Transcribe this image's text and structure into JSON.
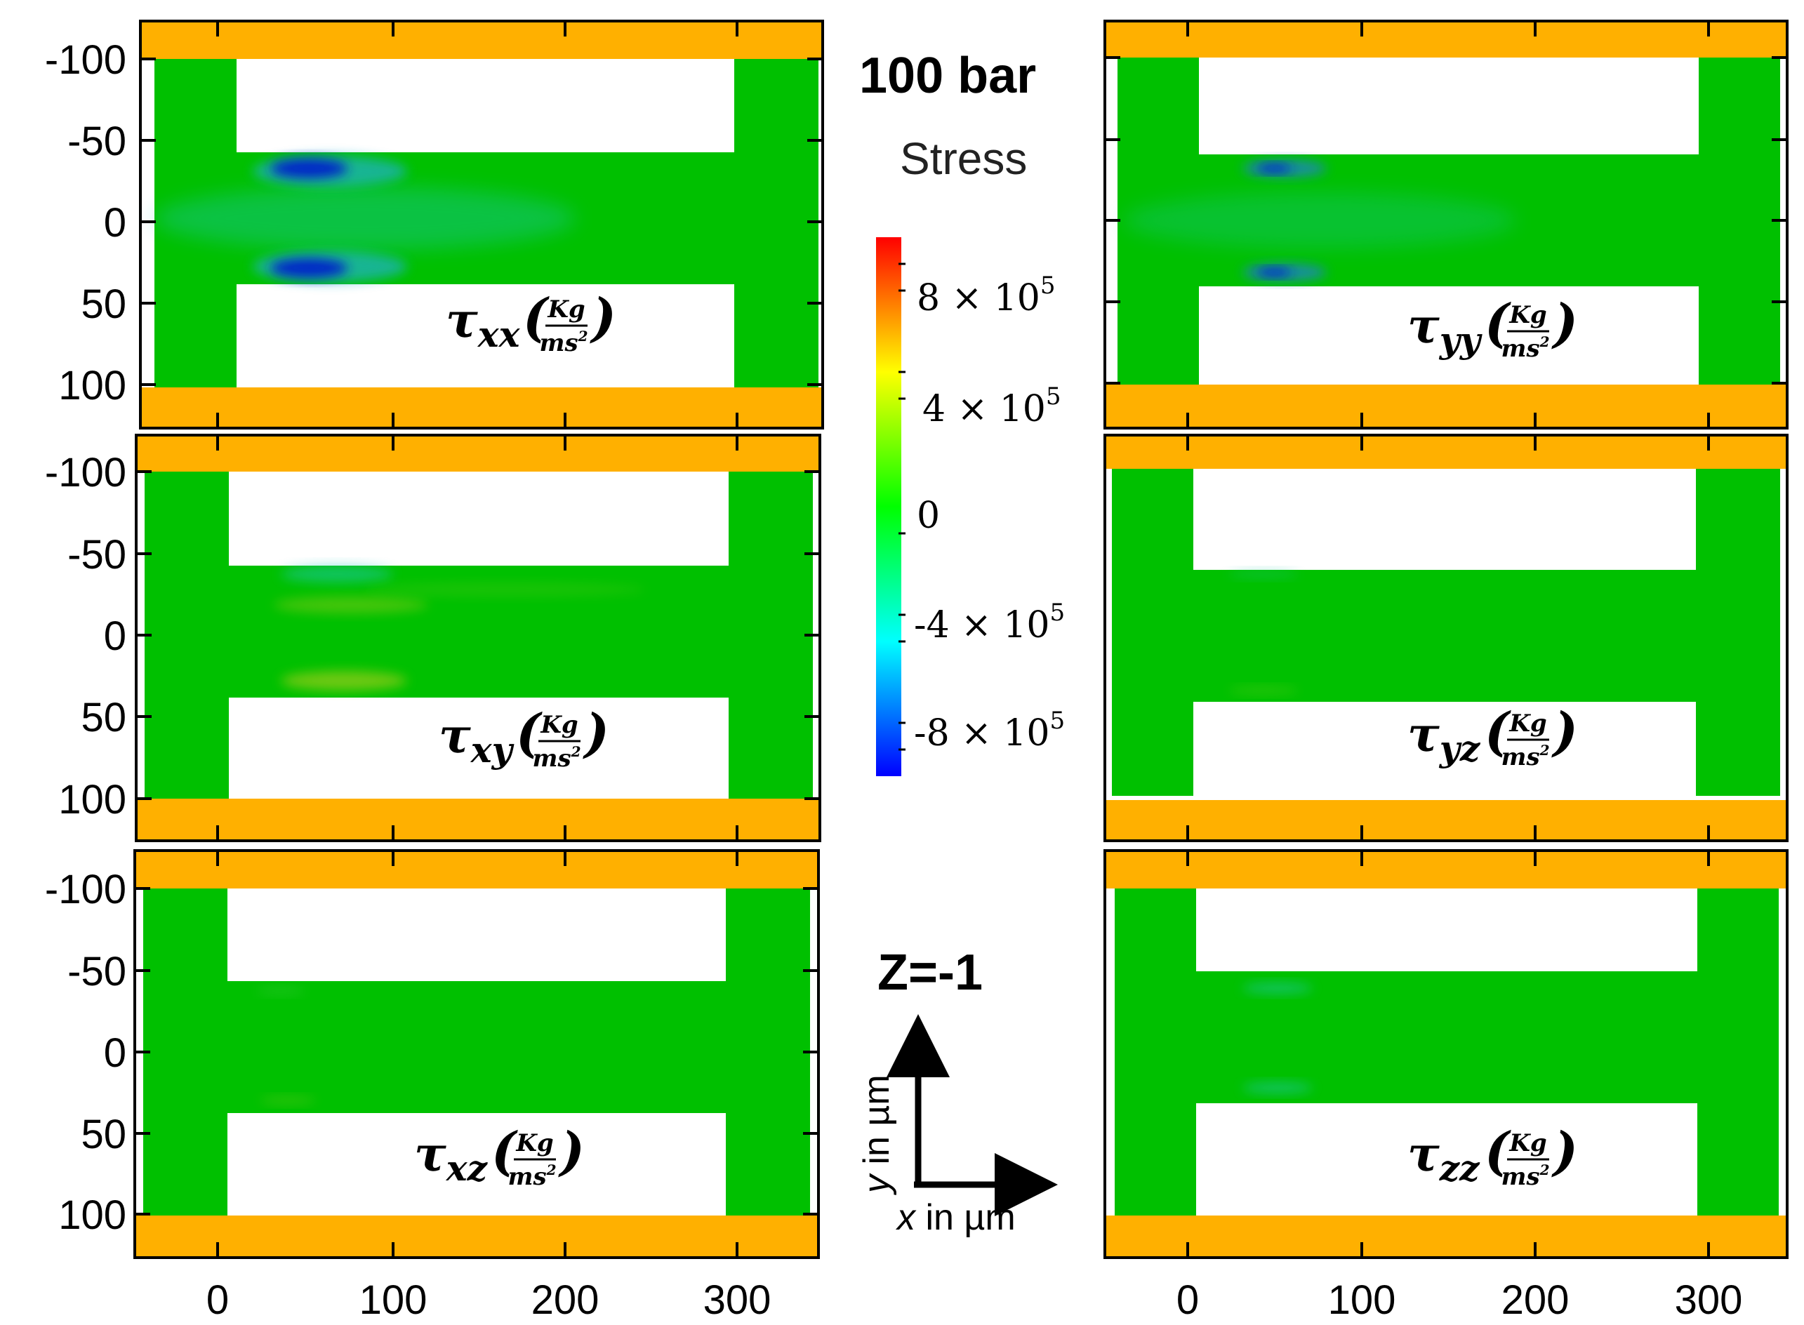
{
  "figure": {
    "pressure_title": "100 bar",
    "stress_label": "Stress",
    "z_label": "Z=-1",
    "y_axis_caption": "in µm",
    "y_axis_var": "y",
    "x_axis_caption": "in µm",
    "x_axis_var": "x"
  },
  "colorbar": {
    "min": -1000000,
    "max": 1000000,
    "labels": [
      {
        "value": 800000,
        "mantissa": "8 × 10",
        "exp": "5"
      },
      {
        "value": 400000,
        "mantissa": "4 × 10",
        "exp": "5"
      },
      {
        "value": 0,
        "mantissa": "0",
        "exp": ""
      },
      {
        "value": -400000,
        "mantissa": "-4 × 10",
        "exp": "5"
      },
      {
        "value": -800000,
        "mantissa": "-8 × 10",
        "exp": "5"
      }
    ]
  },
  "colors": {
    "wall": "#FFB000",
    "fluid": "#00C000",
    "blue": "#0028C8",
    "cyan": "#20C8C0",
    "yellow": "#C8D020"
  },
  "panels": [
    {
      "id": "txx",
      "sub": "xx",
      "tau": "τ",
      "unit_num": "Kg",
      "unit_den": "ms",
      "unit_den_exp": "2",
      "y_ticks": [
        "-100",
        "-50",
        "0",
        "50",
        "100"
      ],
      "x_ticks": []
    },
    {
      "id": "tyy",
      "sub": "yy",
      "tau": "τ",
      "unit_num": "Kg",
      "unit_den": "ms",
      "unit_den_exp": "2",
      "y_ticks": [],
      "x_ticks": []
    },
    {
      "id": "txy",
      "sub": "xy",
      "tau": "τ",
      "unit_num": "Kg",
      "unit_den": "ms",
      "unit_den_exp": "2",
      "y_ticks": [
        "-100",
        "-50",
        "0",
        "50",
        "100"
      ],
      "x_ticks": []
    },
    {
      "id": "tyz",
      "sub": "yz",
      "tau": "τ",
      "unit_num": "Kg",
      "unit_den": "ms",
      "unit_den_exp": "2",
      "y_ticks": [],
      "x_ticks": []
    },
    {
      "id": "txz",
      "sub": "xz",
      "tau": "τ",
      "unit_num": "Kg",
      "unit_den": "ms",
      "unit_den_exp": "2",
      "y_ticks": [
        "-100",
        "-50",
        "0",
        "50",
        "100"
      ],
      "x_ticks": [
        "0",
        "100",
        "200",
        "300"
      ]
    },
    {
      "id": "tzz",
      "sub": "zz",
      "tau": "τ",
      "unit_num": "Kg",
      "unit_den": "ms",
      "unit_den_exp": "2",
      "y_ticks": [],
      "x_ticks": [
        "0",
        "100",
        "200",
        "300"
      ]
    }
  ]
}
